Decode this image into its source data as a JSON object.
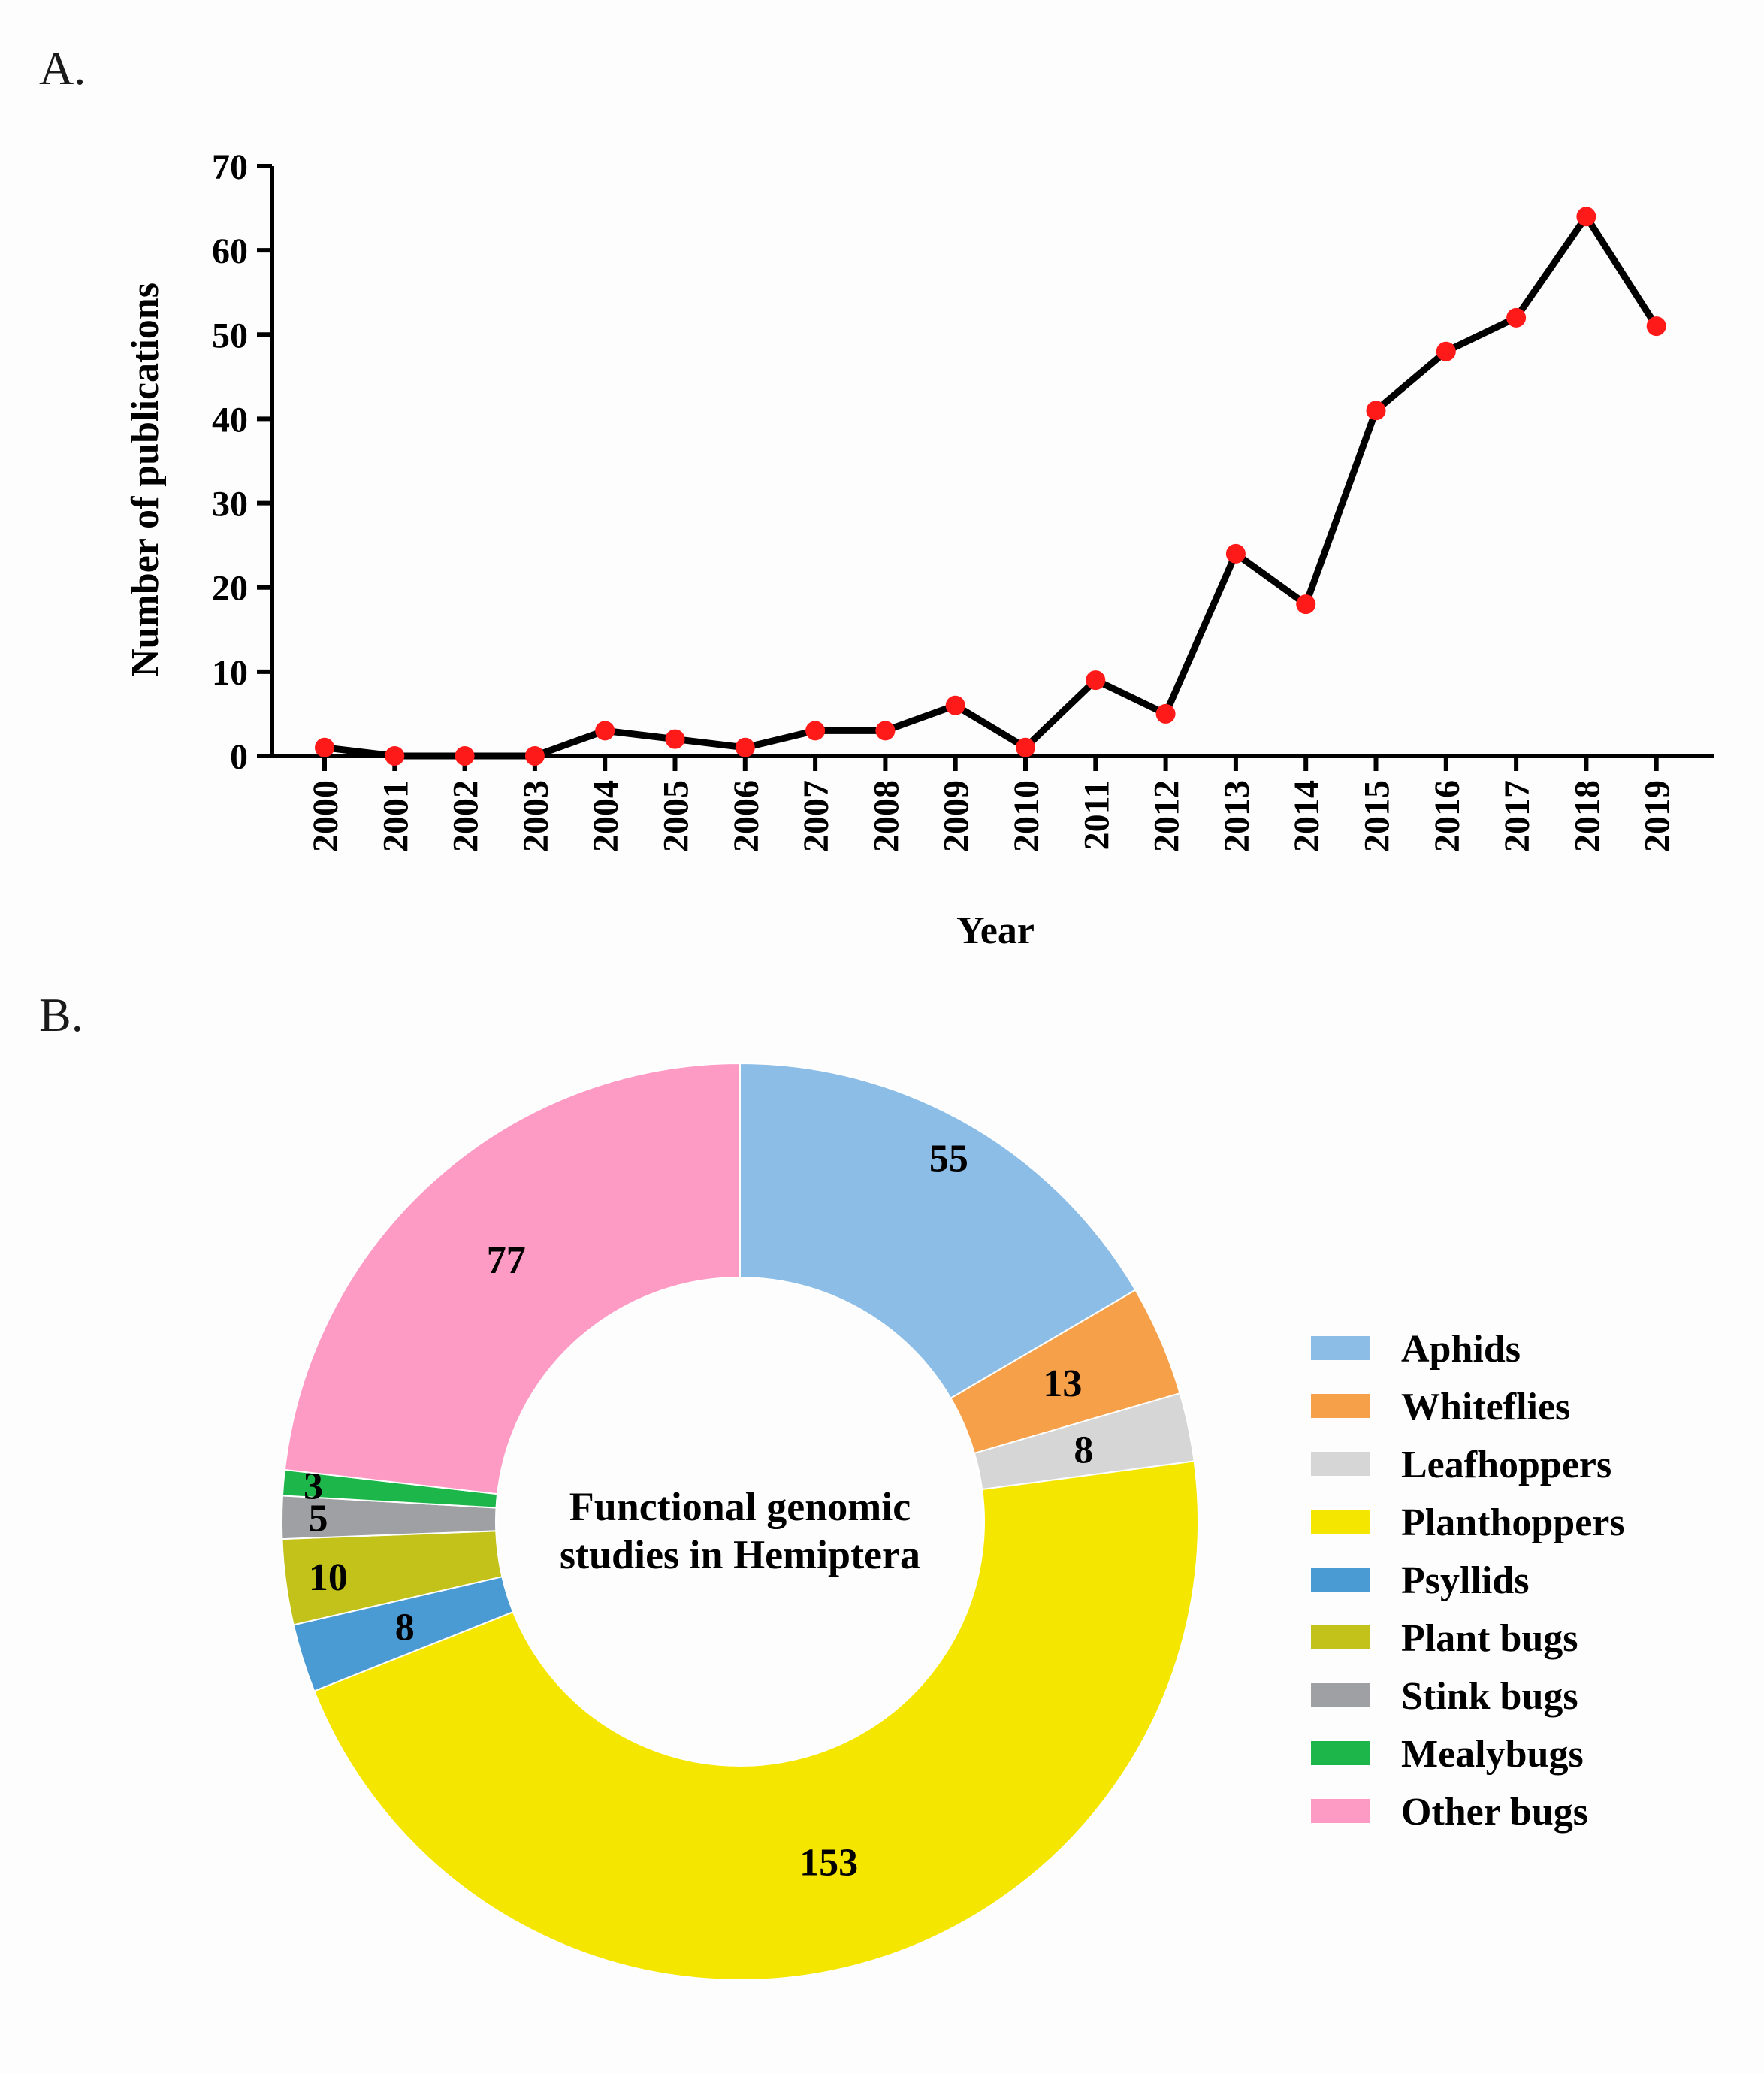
{
  "panels": {
    "a": "A.",
    "b": "B."
  },
  "chart_data": [
    {
      "type": "line",
      "x": [
        "2000",
        "2001",
        "2002",
        "2003",
        "2004",
        "2005",
        "2006",
        "2007",
        "2008",
        "2009",
        "2010",
        "2011",
        "2012",
        "2013",
        "2014",
        "2015",
        "2016",
        "2017",
        "2018",
        "2019"
      ],
      "values": [
        1,
        0,
        0,
        0,
        3,
        2,
        1,
        3,
        3,
        6,
        1,
        9,
        5,
        24,
        18,
        41,
        48,
        52,
        64,
        51
      ],
      "xlabel": "Year",
      "ylabel": "Number of publications",
      "ylim": [
        0,
        70
      ],
      "yticks": [
        "0",
        "10",
        "20",
        "30",
        "40",
        "50",
        "60",
        "70"
      ],
      "line_color": "#000000",
      "marker_color": "#ff1a1a"
    },
    {
      "type": "pie",
      "donut": true,
      "center_text": [
        "Functional genomic",
        "studies in Hemiptera"
      ],
      "categories": [
        "Aphids",
        "Whiteflies",
        "Leafhoppers",
        "Planthoppers",
        "Psyllids",
        "Plant bugs",
        "Stink bugs",
        "Mealybugs",
        "Other bugs"
      ],
      "values": [
        55,
        13,
        8,
        153,
        8,
        10,
        5,
        3,
        77
      ],
      "colors": [
        "#8bbde6",
        "#f7a04a",
        "#d6d6d6",
        "#f5e600",
        "#4a9bd4",
        "#c2c21a",
        "#9fa0a4",
        "#1db64a",
        "#fd9bc4"
      ],
      "legend_position": "right"
    }
  ]
}
